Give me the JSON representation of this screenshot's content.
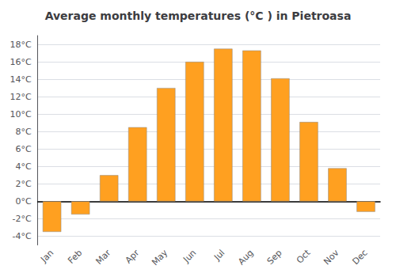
{
  "chart_data": {
    "type": "bar",
    "title": "Average monthly temperatures (°C ) in Pietroasa",
    "categories": [
      "Jan",
      "Feb",
      "Mar",
      "Apr",
      "May",
      "Jun",
      "Jul",
      "Aug",
      "Sep",
      "Oct",
      "Nov",
      "Dec"
    ],
    "values": [
      -3.5,
      -1.5,
      3.0,
      8.5,
      13.0,
      16.0,
      17.5,
      17.3,
      14.1,
      9.1,
      3.8,
      -1.2
    ],
    "color": "#FFA020",
    "ylim": [
      -5,
      19
    ],
    "yticks": [
      {
        "value": -4,
        "label": "-4°C"
      },
      {
        "value": -2,
        "label": "-2°C"
      },
      {
        "value": 0,
        "label": "0°C"
      },
      {
        "value": 2,
        "label": "2°C"
      },
      {
        "value": 4,
        "label": "4°C"
      },
      {
        "value": 6,
        "label": "6°C"
      },
      {
        "value": 8,
        "label": "8°C"
      },
      {
        "value": 10,
        "label": "10°C"
      },
      {
        "value": 12,
        "label": "12°C"
      },
      {
        "value": 14,
        "label": "14°C"
      },
      {
        "value": 16,
        "label": "16°C"
      },
      {
        "value": 18,
        "label": "18°C"
      }
    ],
    "grid": true
  }
}
